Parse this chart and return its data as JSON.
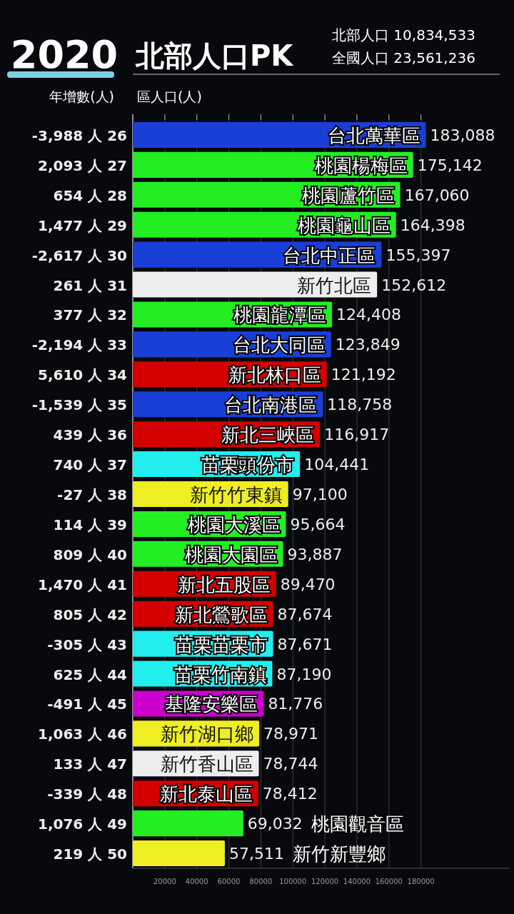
{
  "chart_data": {
    "type": "bar",
    "orientation": "horizontal",
    "subtitle": "2020",
    "title": "北部人口PK",
    "categories": [
      "台北萬華區",
      "桃園楊梅區",
      "桃園蘆竹區",
      "桃園龜山區",
      "台北中正區",
      "新竹北區",
      "桃園龍潭區",
      "台北大同區",
      "新北林口區",
      "台北南港區",
      "新北三峽區",
      "苗栗頭份市",
      "新竹竹東鎮",
      "桃園大溪區",
      "桃園大園區",
      "新北五股區",
      "新北鶯歌區",
      "苗栗苗栗市",
      "苗栗竹南鎮",
      "基隆安樂區",
      "新竹湖口鄉",
      "新竹香山區",
      "新北泰山區",
      "桃園觀音區",
      "新竹新豐鄉"
    ],
    "values": [
      183088,
      175142,
      167060,
      164398,
      155397,
      152612,
      124408,
      123849,
      121192,
      118758,
      116917,
      104441,
      97100,
      95664,
      93887,
      89470,
      87674,
      87671,
      87190,
      81776,
      78971,
      78744,
      78412,
      69032,
      57511
    ],
    "value_labels": [
      "183,088",
      "175,142",
      "167,060",
      "164,398",
      "155,397",
      "152,612",
      "124,408",
      "123,849",
      "121,192",
      "118,758",
      "116,917",
      "104,441",
      "97,100",
      "95,664",
      "93,887",
      "89,470",
      "87,674",
      "87,671",
      "87,190",
      "81,776",
      "78,971",
      "78,744",
      "78,412",
      "69,032",
      "57,511"
    ],
    "colors": [
      "#1a3fd6",
      "#22ee22",
      "#22ee22",
      "#22ee22",
      "#1a3fd6",
      "#eeeeee",
      "#22ee22",
      "#1a3fd6",
      "#d40000",
      "#1a3fd6",
      "#d40000",
      "#22eeee",
      "#eeee22",
      "#22ee22",
      "#22ee22",
      "#d40000",
      "#d40000",
      "#22eeee",
      "#22eeee",
      "#cc00cc",
      "#eeee22",
      "#eeeeee",
      "#d40000",
      "#22ee22",
      "#eeee22"
    ],
    "xlim": [
      0,
      235000
    ],
    "xticks": [
      20000,
      40000,
      60000,
      80000,
      100000,
      120000,
      140000,
      160000,
      180000
    ],
    "grid": "x",
    "annotations": [
      "北部人口 10,834,533",
      "全國人口 23,561,236",
      "年增數(人)",
      "區人口(人)",
      "-3,988 人 26",
      "2,093 人 27",
      "654 人 28",
      "1,477 人 29",
      "-2,617 人 30",
      "261 人 31",
      "377 人 32",
      "-2,194 人 33",
      "5,610 人 34",
      "-1,539 人 35",
      "439 人 36",
      "740 人 37",
      "-27 人 38",
      "114 人 39",
      "809 人 40",
      "1,470 人 41",
      "805 人 42",
      "-305 人 43",
      "625 人 44",
      "-491 人 45",
      "1,063 人 46",
      "133 人 47",
      "-339 人 48",
      "1,076 人 49",
      "219 人 50"
    ]
  }
}
